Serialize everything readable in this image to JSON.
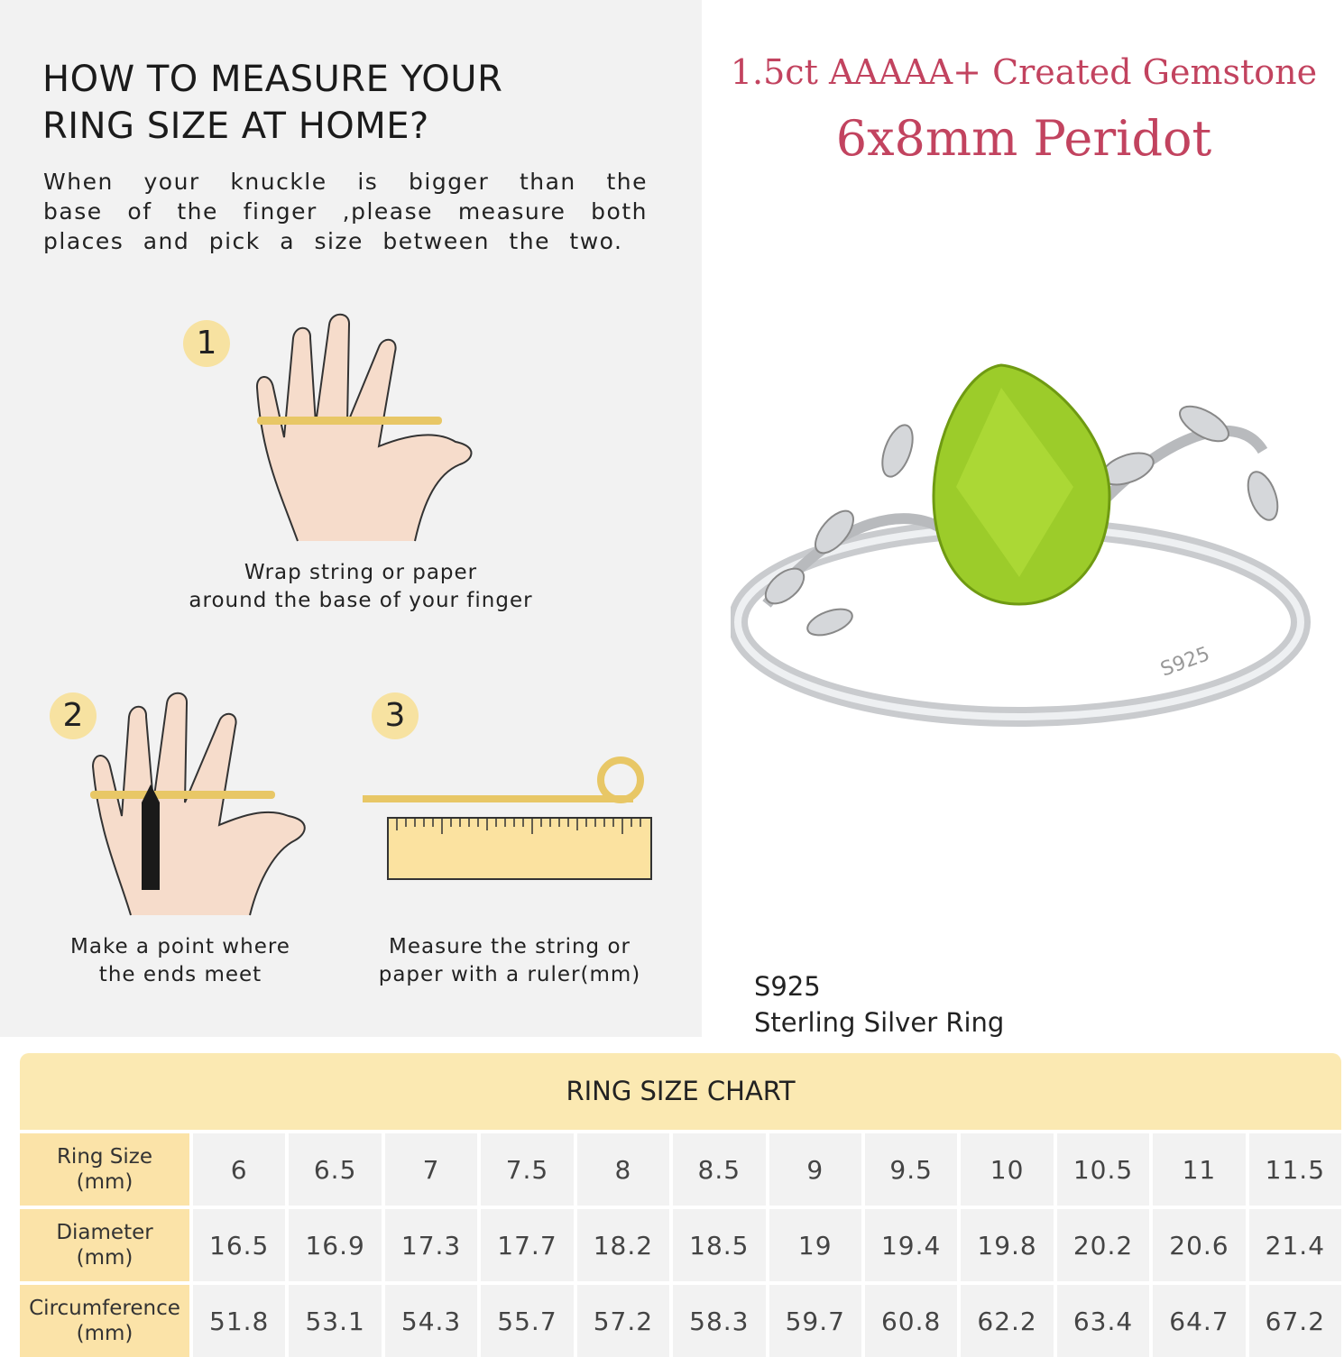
{
  "guide": {
    "title_line1": "HOW TO MEASURE YOUR",
    "title_line2": "RING SIZE AT HOME?",
    "intro": "When your knuckle is bigger than the base of the finger ,please measure both places and pick a size between the two.",
    "steps": [
      {
        "number": "1",
        "caption_line1": "Wrap string or paper",
        "caption_line2": "around the base of your finger"
      },
      {
        "number": "2",
        "caption_line1": "Make a point where",
        "caption_line2": "the ends meet"
      },
      {
        "number": "3",
        "caption_line1": "Measure the string or",
        "caption_line2": "paper with a ruler(mm)"
      }
    ]
  },
  "product": {
    "headline": "1.5ct AAAAA+ Created Gemstone",
    "subheadline": "6x8mm Peridot",
    "stamp": "S925",
    "material_line1": "S925",
    "material_line2": "Sterling Silver Ring",
    "gem_color": "#9ccc2a",
    "accent_color": "#c2435f"
  },
  "size_chart": {
    "title": "RING SIZE CHART",
    "rows": [
      {
        "label": "Ring Size",
        "unit": "(mm)",
        "values": [
          "6",
          "6.5",
          "7",
          "7.5",
          "8",
          "8.5",
          "9",
          "9.5",
          "10",
          "10.5",
          "11",
          "11.5"
        ]
      },
      {
        "label": "Diameter",
        "unit": "(mm)",
        "values": [
          "16.5",
          "16.9",
          "17.3",
          "17.7",
          "18.2",
          "18.5",
          "19",
          "19.4",
          "19.8",
          "20.2",
          "20.6",
          "21.4"
        ]
      },
      {
        "label": "Circumference",
        "unit": "(mm)",
        "values": [
          "51.8",
          "53.1",
          "54.3",
          "55.7",
          "57.2",
          "58.3",
          "59.7",
          "60.8",
          "62.2",
          "63.4",
          "64.7",
          "67.2"
        ]
      }
    ]
  }
}
